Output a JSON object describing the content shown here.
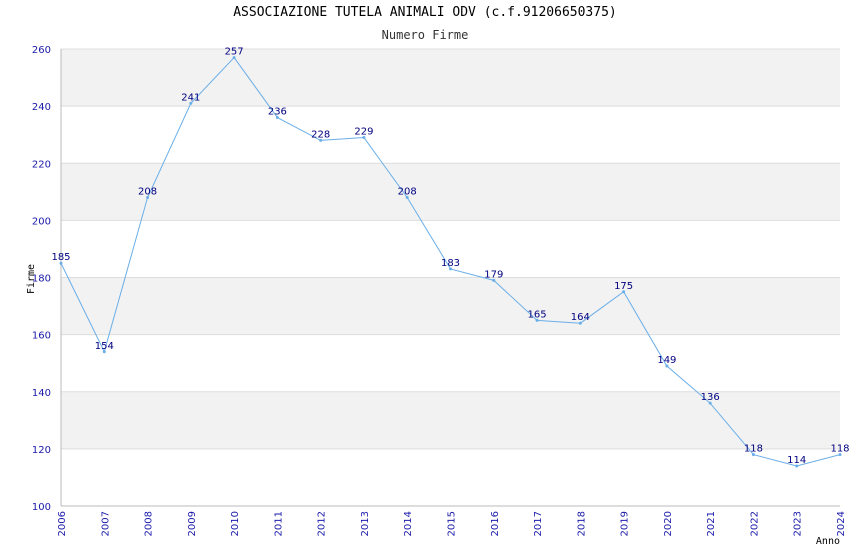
{
  "chart_data": {
    "type": "line",
    "title": "ASSOCIAZIONE TUTELA ANIMALI ODV (c.f.91206650375)",
    "subtitle": "Numero Firme",
    "xlabel": "Anno",
    "ylabel": "Firme",
    "x": [
      "2006",
      "2007",
      "2008",
      "2009",
      "2010",
      "2011",
      "2012",
      "2013",
      "2014",
      "2015",
      "2016",
      "2017",
      "2018",
      "2019",
      "2020",
      "2021",
      "2022",
      "2023",
      "2024"
    ],
    "series": [
      {
        "values": [
          185,
          154,
          208,
          241,
          257,
          236,
          228,
          229,
          208,
          183,
          179,
          165,
          164,
          175,
          149,
          136,
          118,
          114,
          118
        ]
      }
    ],
    "ylim": [
      100,
      260
    ],
    "yticks": [
      100,
      120,
      140,
      160,
      180,
      200,
      220,
      240,
      260
    ],
    "grid": "horizontal bands",
    "colors": {
      "line": "#6aaee8",
      "band": "#f2f2f2",
      "tick_label": "#1a1aaa",
      "data_label": "#000080",
      "grid": "#dddddd"
    }
  }
}
